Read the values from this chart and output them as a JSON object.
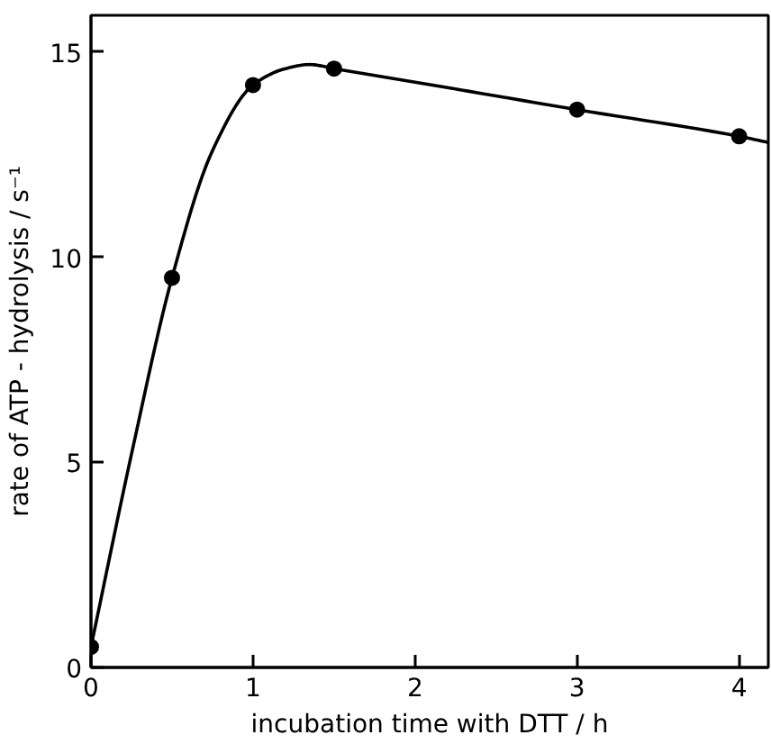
{
  "chart_data": {
    "type": "scatter",
    "xlabel": "incubation time with DTT / h",
    "ylabel": "rate of ATP - hydrolysis / s⁻¹",
    "xlim": [
      0,
      4.18
    ],
    "ylim": [
      0,
      15.9
    ],
    "xticks": [
      0,
      1,
      2,
      3,
      4
    ],
    "yticks": [
      0,
      5,
      10,
      15
    ],
    "grid": false,
    "marker": "circle",
    "series": [
      {
        "color": "#000000",
        "x": [
          0,
          0.5,
          1,
          1.5,
          3,
          4
        ],
        "values": [
          0.5,
          9.5,
          14.2,
          14.6,
          13.6,
          12.95
        ]
      },
      {
        "type": "line",
        "color": "#000000",
        "marker": "none",
        "x": [
          0,
          0.25,
          0.5,
          0.75,
          1,
          1.2,
          1.35,
          1.5,
          2,
          3,
          4,
          4.18
        ],
        "values": [
          0.5,
          5.2,
          9.5,
          12.6,
          14.2,
          14.6,
          14.7,
          14.6,
          14.27,
          13.6,
          12.95,
          12.8
        ]
      }
    ]
  }
}
